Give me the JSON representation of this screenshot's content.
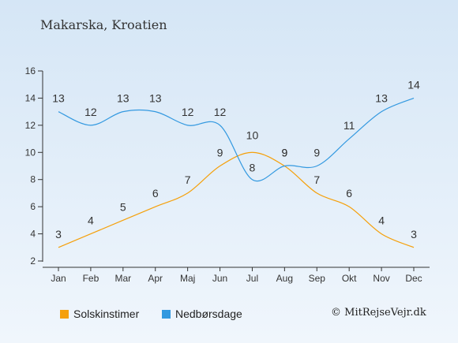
{
  "header": {
    "title": "Makarska, Kroatien"
  },
  "copyright": "© MitRejseVejr.dk",
  "colors": {
    "sunshine": "#f5a00a",
    "rain": "#3399e0"
  },
  "chart_data": {
    "type": "line",
    "categories": [
      "Jan",
      "Feb",
      "Mar",
      "Apr",
      "Maj",
      "Jun",
      "Jul",
      "Aug",
      "Sep",
      "Okt",
      "Nov",
      "Dec"
    ],
    "ylim": [
      2,
      16
    ],
    "yticks": [
      "2",
      "4",
      "6",
      "8",
      "10",
      "12",
      "14",
      "16"
    ],
    "grid": false,
    "legend_position": "bottom-left",
    "series": [
      {
        "name": "Solskinstimer",
        "values": [
          3,
          4,
          5,
          6,
          7,
          9,
          10,
          9,
          7,
          6,
          4,
          3
        ]
      },
      {
        "name": "Nedbørsdage",
        "values": [
          13,
          12,
          13,
          13,
          12,
          12,
          8,
          9,
          9,
          11,
          13,
          14
        ]
      }
    ]
  }
}
